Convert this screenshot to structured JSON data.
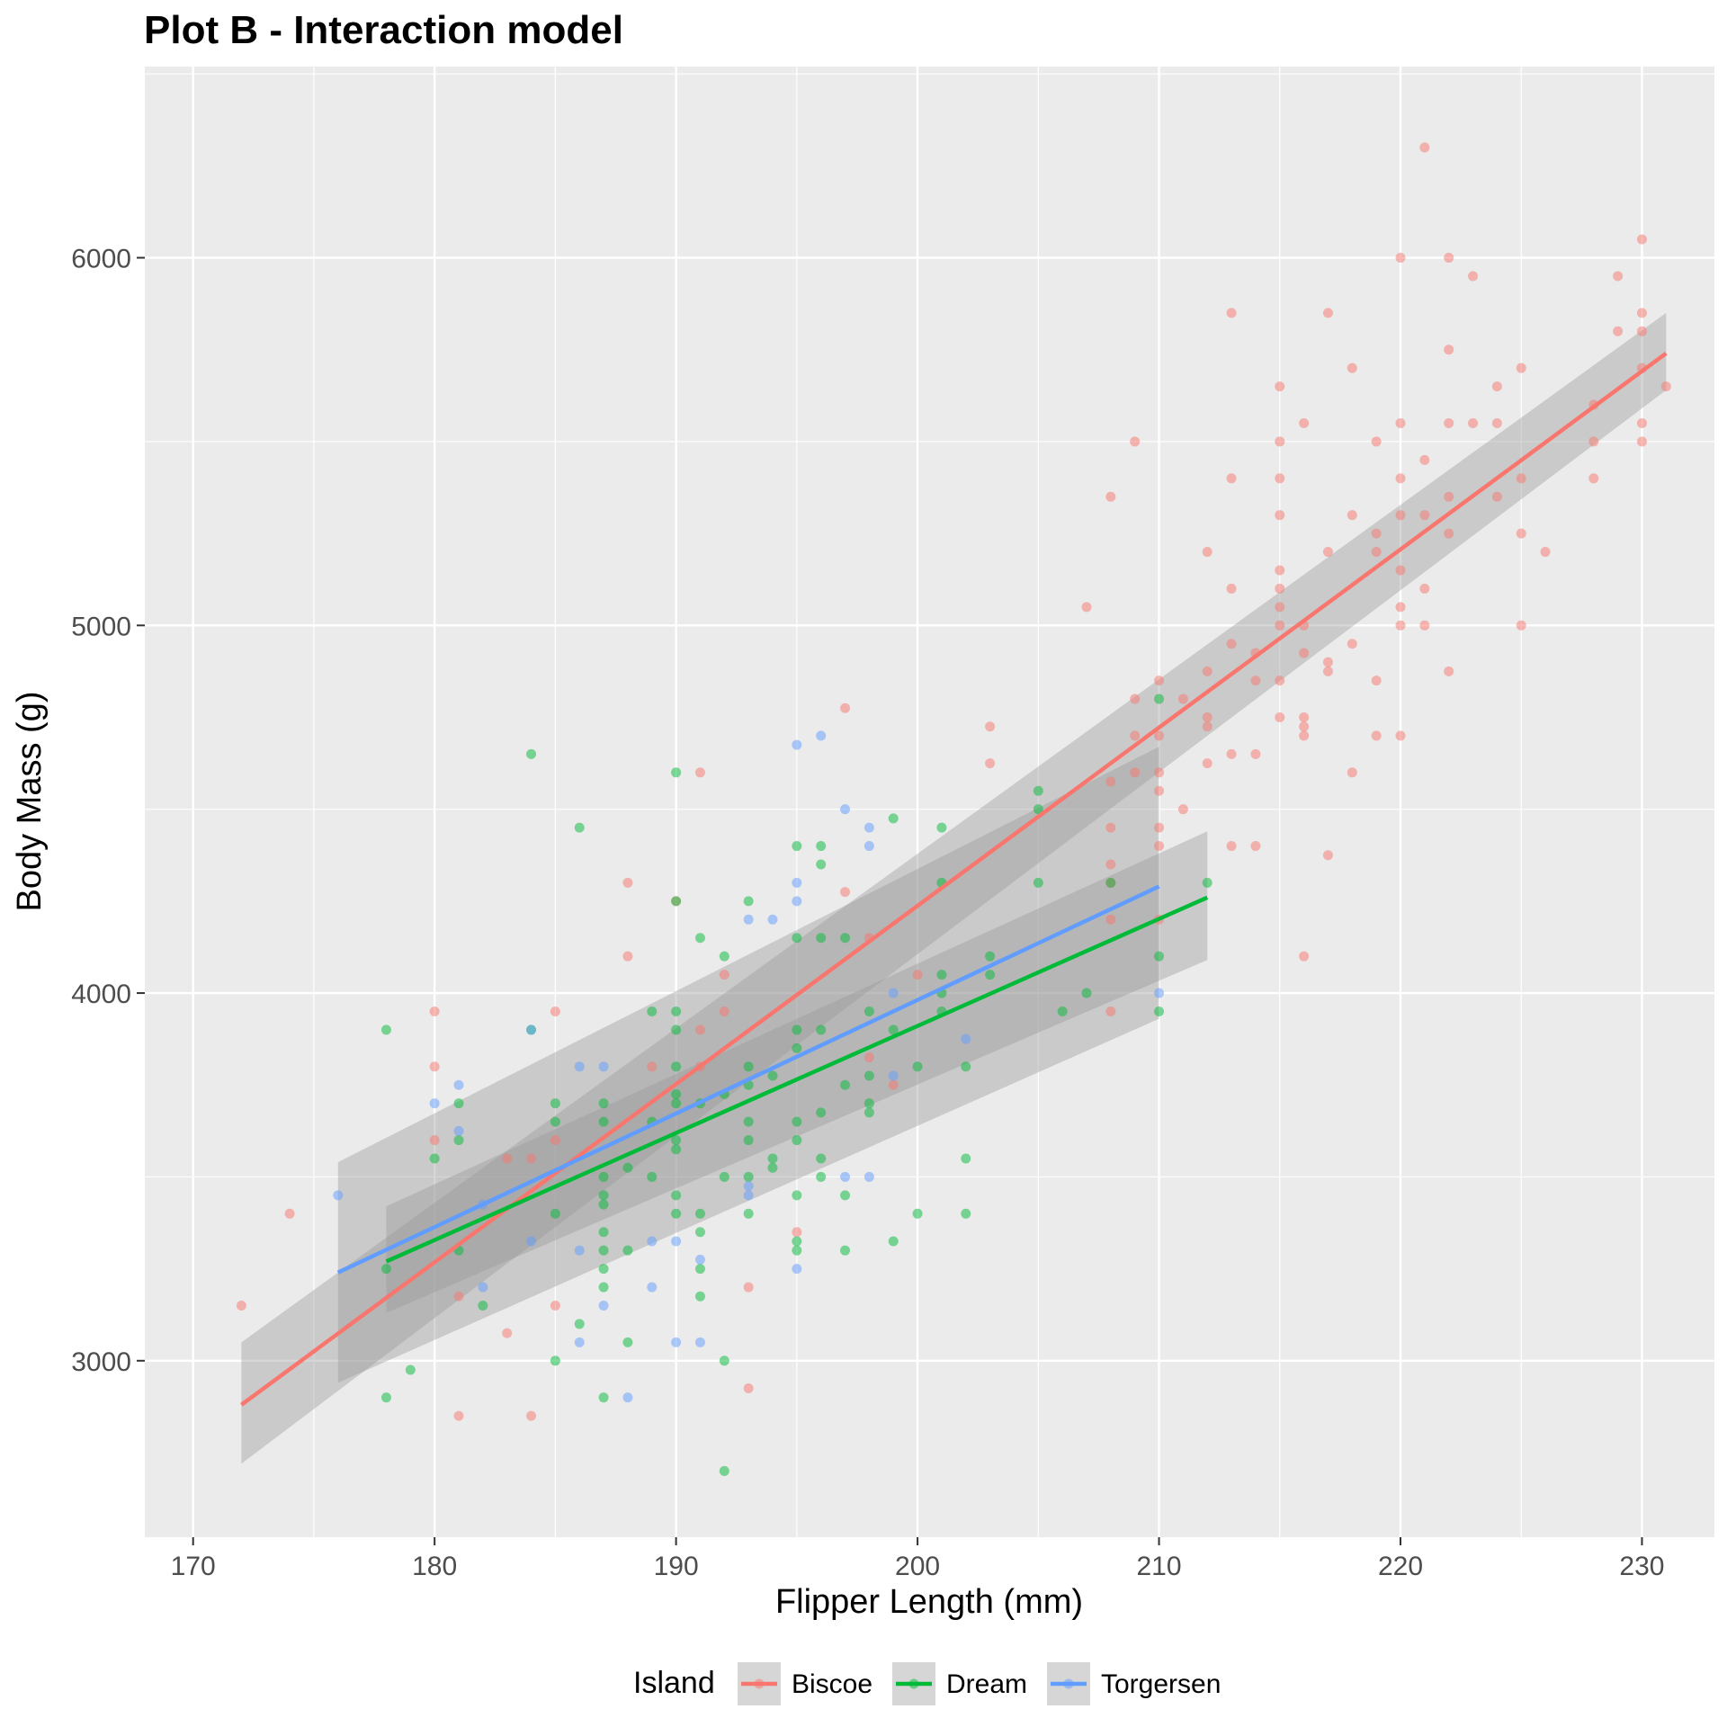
{
  "chart_data": {
    "type": "scatter",
    "title": "Plot B - Interaction model",
    "xlabel": "Flipper Length (mm)",
    "ylabel": "Body Mass (g)",
    "xlim": [
      168,
      233
    ],
    "ylim": [
      2520,
      6520
    ],
    "x_ticks": [
      170,
      180,
      190,
      200,
      210,
      220,
      230
    ],
    "y_ticks": [
      3000,
      4000,
      5000,
      6000
    ],
    "grid": true,
    "legend": {
      "title": "Island",
      "position": "bottom"
    },
    "colors": {
      "Biscoe": "#F8766D",
      "Dream": "#00BA38",
      "Torgersen": "#619CFF",
      "panel": "#EBEBEB",
      "band": "#999999"
    },
    "series": [
      {
        "name": "Biscoe",
        "fit": {
          "x": [
            172,
            231
          ],
          "y": [
            2880,
            5740
          ]
        },
        "ci": {
          "x": [
            172,
            231
          ],
          "lower": [
            2720,
            5640
          ],
          "upper": [
            3050,
            5850
          ]
        },
        "points": [
          [
            172,
            3150
          ],
          [
            174,
            3400
          ],
          [
            180,
            3950
          ],
          [
            180,
            3800
          ],
          [
            180,
            3600
          ],
          [
            181,
            2850
          ],
          [
            181,
            3175
          ],
          [
            183,
            3550
          ],
          [
            183,
            3075
          ],
          [
            184,
            2850
          ],
          [
            184,
            3550
          ],
          [
            185,
            3950
          ],
          [
            185,
            3600
          ],
          [
            185,
            3150
          ],
          [
            188,
            4300
          ],
          [
            188,
            4100
          ],
          [
            189,
            3800
          ],
          [
            190,
            4250
          ],
          [
            191,
            4600
          ],
          [
            191,
            3900
          ],
          [
            191,
            3800
          ],
          [
            192,
            4050
          ],
          [
            192,
            3950
          ],
          [
            193,
            3200
          ],
          [
            193,
            2925
          ],
          [
            195,
            3350
          ],
          [
            197,
            4775
          ],
          [
            197,
            4275
          ],
          [
            198,
            4150
          ],
          [
            198,
            3825
          ],
          [
            199,
            3750
          ],
          [
            200,
            4050
          ],
          [
            203,
            4725
          ],
          [
            203,
            4625
          ],
          [
            207,
            5050
          ],
          [
            208,
            5350
          ],
          [
            208,
            4575
          ],
          [
            208,
            4450
          ],
          [
            208,
            4350
          ],
          [
            208,
            4300
          ],
          [
            208,
            4200
          ],
          [
            208,
            3950
          ],
          [
            209,
            5500
          ],
          [
            209,
            4800
          ],
          [
            209,
            4700
          ],
          [
            209,
            4600
          ],
          [
            210,
            4850
          ],
          [
            210,
            4700
          ],
          [
            210,
            4600
          ],
          [
            210,
            4550
          ],
          [
            210,
            4450
          ],
          [
            210,
            4400
          ],
          [
            210,
            4200
          ],
          [
            211,
            4800
          ],
          [
            211,
            4500
          ],
          [
            212,
            5200
          ],
          [
            212,
            4875
          ],
          [
            212,
            4750
          ],
          [
            212,
            4725
          ],
          [
            212,
            4625
          ],
          [
            213,
            5850
          ],
          [
            213,
            5400
          ],
          [
            213,
            5100
          ],
          [
            213,
            4950
          ],
          [
            213,
            4650
          ],
          [
            213,
            4400
          ],
          [
            214,
            4925
          ],
          [
            214,
            4850
          ],
          [
            214,
            4650
          ],
          [
            214,
            4400
          ],
          [
            215,
            5650
          ],
          [
            215,
            5500
          ],
          [
            215,
            5400
          ],
          [
            215,
            5300
          ],
          [
            215,
            5150
          ],
          [
            215,
            5100
          ],
          [
            215,
            5050
          ],
          [
            215,
            5000
          ],
          [
            215,
            4850
          ],
          [
            215,
            4750
          ],
          [
            216,
            5550
          ],
          [
            216,
            5000
          ],
          [
            216,
            4925
          ],
          [
            216,
            4750
          ],
          [
            216,
            4725
          ],
          [
            216,
            4700
          ],
          [
            216,
            4100
          ],
          [
            217,
            5850
          ],
          [
            217,
            5200
          ],
          [
            217,
            4900
          ],
          [
            217,
            4875
          ],
          [
            217,
            4375
          ],
          [
            218,
            5700
          ],
          [
            218,
            5300
          ],
          [
            218,
            4950
          ],
          [
            218,
            4600
          ],
          [
            219,
            5500
          ],
          [
            219,
            5250
          ],
          [
            219,
            5200
          ],
          [
            219,
            4850
          ],
          [
            219,
            4700
          ],
          [
            220,
            6000
          ],
          [
            220,
            5550
          ],
          [
            220,
            5400
          ],
          [
            220,
            5300
          ],
          [
            220,
            5150
          ],
          [
            220,
            5050
          ],
          [
            220,
            5000
          ],
          [
            220,
            4700
          ],
          [
            221,
            6300
          ],
          [
            221,
            5450
          ],
          [
            221,
            5300
          ],
          [
            221,
            5100
          ],
          [
            221,
            5000
          ],
          [
            222,
            6000
          ],
          [
            222,
            5750
          ],
          [
            222,
            5550
          ],
          [
            222,
            5350
          ],
          [
            222,
            5250
          ],
          [
            222,
            4875
          ],
          [
            223,
            5950
          ],
          [
            223,
            5550
          ],
          [
            224,
            5650
          ],
          [
            224,
            5550
          ],
          [
            224,
            5350
          ],
          [
            225,
            5700
          ],
          [
            225,
            5400
          ],
          [
            225,
            5250
          ],
          [
            225,
            5000
          ],
          [
            226,
            5200
          ],
          [
            228,
            5600
          ],
          [
            228,
            5500
          ],
          [
            228,
            5400
          ],
          [
            229,
            5950
          ],
          [
            229,
            5800
          ],
          [
            230,
            6050
          ],
          [
            230,
            5850
          ],
          [
            230,
            5800
          ],
          [
            230,
            5700
          ],
          [
            230,
            5550
          ],
          [
            230,
            5500
          ],
          [
            231,
            5650
          ]
        ]
      },
      {
        "name": "Dream",
        "fit": {
          "x": [
            178,
            212
          ],
          "y": [
            3270,
            4260
          ]
        },
        "ci": {
          "x": [
            178,
            212
          ],
          "lower": [
            3130,
            4090
          ],
          "upper": [
            3420,
            4440
          ]
        },
        "points": [
          [
            178,
            3900
          ],
          [
            178,
            3250
          ],
          [
            178,
            2900
          ],
          [
            179,
            2975
          ],
          [
            180,
            3550
          ],
          [
            181,
            3700
          ],
          [
            181,
            3600
          ],
          [
            181,
            3300
          ],
          [
            182,
            3150
          ],
          [
            184,
            4650
          ],
          [
            184,
            3900
          ],
          [
            185,
            3700
          ],
          [
            185,
            3650
          ],
          [
            185,
            3400
          ],
          [
            185,
            3000
          ],
          [
            186,
            4450
          ],
          [
            186,
            3100
          ],
          [
            187,
            3700
          ],
          [
            187,
            3650
          ],
          [
            187,
            3500
          ],
          [
            187,
            3450
          ],
          [
            187,
            3425
          ],
          [
            187,
            3350
          ],
          [
            187,
            3300
          ],
          [
            187,
            3250
          ],
          [
            187,
            3200
          ],
          [
            187,
            2900
          ],
          [
            188,
            3525
          ],
          [
            188,
            3300
          ],
          [
            188,
            3050
          ],
          [
            189,
            3950
          ],
          [
            189,
            3650
          ],
          [
            189,
            3500
          ],
          [
            190,
            4600
          ],
          [
            190,
            4250
          ],
          [
            190,
            3950
          ],
          [
            190,
            3900
          ],
          [
            190,
            3800
          ],
          [
            190,
            3725
          ],
          [
            190,
            3700
          ],
          [
            190,
            3600
          ],
          [
            190,
            3575
          ],
          [
            190,
            3450
          ],
          [
            190,
            3400
          ],
          [
            191,
            4150
          ],
          [
            191,
            3700
          ],
          [
            191,
            3400
          ],
          [
            191,
            3350
          ],
          [
            191,
            3250
          ],
          [
            191,
            3175
          ],
          [
            192,
            4100
          ],
          [
            192,
            3725
          ],
          [
            192,
            3500
          ],
          [
            192,
            3000
          ],
          [
            192,
            2700
          ],
          [
            193,
            4250
          ],
          [
            193,
            3800
          ],
          [
            193,
            3750
          ],
          [
            193,
            3650
          ],
          [
            193,
            3600
          ],
          [
            193,
            3500
          ],
          [
            193,
            3400
          ],
          [
            194,
            3775
          ],
          [
            194,
            3550
          ],
          [
            194,
            3525
          ],
          [
            195,
            4400
          ],
          [
            195,
            4150
          ],
          [
            195,
            3900
          ],
          [
            195,
            3850
          ],
          [
            195,
            3650
          ],
          [
            195,
            3600
          ],
          [
            195,
            3450
          ],
          [
            195,
            3325
          ],
          [
            195,
            3300
          ],
          [
            196,
            4400
          ],
          [
            196,
            4350
          ],
          [
            196,
            4150
          ],
          [
            196,
            3900
          ],
          [
            196,
            3675
          ],
          [
            196,
            3550
          ],
          [
            196,
            3500
          ],
          [
            197,
            4150
          ],
          [
            197,
            3750
          ],
          [
            197,
            3450
          ],
          [
            197,
            3300
          ],
          [
            198,
            3950
          ],
          [
            198,
            3775
          ],
          [
            198,
            3700
          ],
          [
            198,
            3675
          ],
          [
            199,
            4475
          ],
          [
            199,
            3900
          ],
          [
            199,
            3325
          ],
          [
            200,
            3800
          ],
          [
            200,
            3400
          ],
          [
            201,
            4450
          ],
          [
            201,
            4300
          ],
          [
            201,
            4050
          ],
          [
            201,
            4000
          ],
          [
            201,
            3950
          ],
          [
            202,
            3800
          ],
          [
            202,
            3550
          ],
          [
            202,
            3400
          ],
          [
            203,
            4100
          ],
          [
            203,
            4050
          ],
          [
            205,
            4550
          ],
          [
            205,
            4500
          ],
          [
            205,
            4300
          ],
          [
            206,
            3950
          ],
          [
            207,
            4000
          ],
          [
            208,
            4300
          ],
          [
            210,
            4800
          ],
          [
            210,
            4100
          ],
          [
            210,
            3950
          ],
          [
            212,
            4300
          ]
        ]
      },
      {
        "name": "Torgersen",
        "fit": {
          "x": [
            176,
            210
          ],
          "y": [
            3240,
            4290
          ]
        },
        "ci": {
          "x": [
            176,
            210
          ],
          "lower": [
            2940,
            3930
          ],
          "upper": [
            3540,
            4670
          ]
        },
        "points": [
          [
            176,
            3450
          ],
          [
            180,
            3700
          ],
          [
            181,
            3750
          ],
          [
            181,
            3625
          ],
          [
            182,
            3425
          ],
          [
            182,
            3200
          ],
          [
            184,
            3900
          ],
          [
            184,
            3325
          ],
          [
            186,
            3800
          ],
          [
            186,
            3300
          ],
          [
            186,
            3050
          ],
          [
            187,
            3800
          ],
          [
            187,
            3150
          ],
          [
            188,
            2900
          ],
          [
            189,
            3325
          ],
          [
            189,
            3200
          ],
          [
            190,
            3325
          ],
          [
            190,
            3050
          ],
          [
            191,
            3275
          ],
          [
            191,
            3050
          ],
          [
            193,
            4200
          ],
          [
            193,
            3475
          ],
          [
            193,
            3450
          ],
          [
            194,
            4200
          ],
          [
            195,
            4675
          ],
          [
            195,
            4300
          ],
          [
            195,
            4250
          ],
          [
            195,
            3250
          ],
          [
            196,
            4700
          ],
          [
            197,
            4500
          ],
          [
            197,
            3500
          ],
          [
            198,
            4450
          ],
          [
            198,
            4400
          ],
          [
            198,
            3500
          ],
          [
            199,
            4000
          ],
          [
            199,
            3775
          ],
          [
            202,
            3875
          ],
          [
            210,
            4000
          ]
        ]
      }
    ]
  }
}
